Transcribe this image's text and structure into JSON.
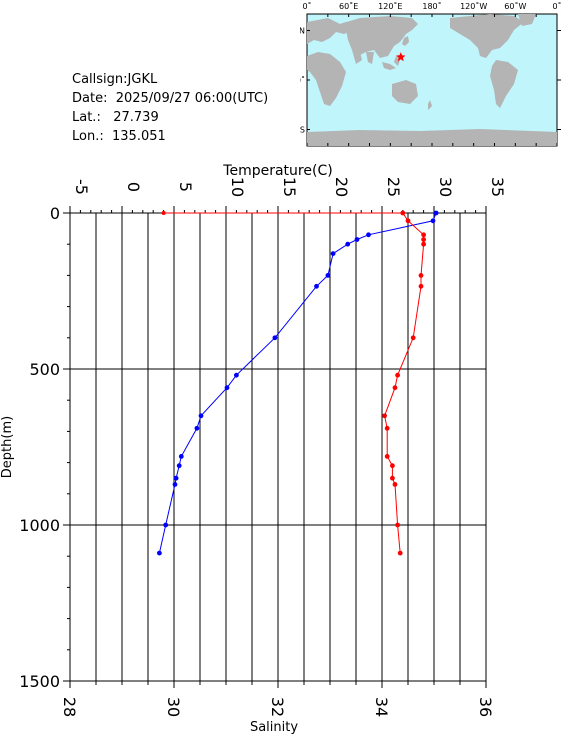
{
  "station": {
    "callsign_label": "Callsign:",
    "callsign": "JGKL",
    "date_label": "Date:",
    "date": "2025/09/27 06:00(UTC)",
    "lat_label": "Lat.:",
    "lat": "27.739",
    "lon_label": "Lon.:",
    "lon": "135.051"
  },
  "map": {
    "lon_ticks": [
      "0˚",
      "60˚E",
      "120˚E",
      "180˚",
      "120˚W",
      "60˚W",
      "0˚"
    ],
    "lat_ticks": [
      "60˚N",
      "0˚",
      "60˚S"
    ],
    "ocean_color": "#bff5fb",
    "land_color": "#b4b4b4",
    "marker_color": "#ff0000",
    "station_lon": 135.051,
    "station_lat": 27.739
  },
  "chart_data": {
    "type": "line",
    "top_axis": {
      "label": "Temperature(C)",
      "range": [
        -5,
        35
      ],
      "ticks": [
        -5,
        0,
        5,
        10,
        15,
        20,
        25,
        30,
        35
      ]
    },
    "bottom_axis": {
      "label": "Salinity",
      "range": [
        28,
        36
      ],
      "ticks": [
        28,
        30,
        32,
        34,
        36
      ]
    },
    "y_axis": {
      "label": "Depth(m)",
      "range": [
        0,
        1500
      ],
      "ticks": [
        0,
        500,
        1000,
        1500
      ],
      "inverted": true
    },
    "grid": true,
    "series": [
      {
        "axis": "top",
        "color": "#0000ff",
        "points": [
          {
            "x": 30.2,
            "y": 0
          },
          {
            "x": 29.9,
            "y": 25
          },
          {
            "x": 23.7,
            "y": 70
          },
          {
            "x": 22.6,
            "y": 85
          },
          {
            "x": 21.7,
            "y": 100
          },
          {
            "x": 20.3,
            "y": 130
          },
          {
            "x": 19.8,
            "y": 200
          },
          {
            "x": 18.7,
            "y": 235
          },
          {
            "x": 14.7,
            "y": 400
          },
          {
            "x": 11.0,
            "y": 520
          },
          {
            "x": 10.1,
            "y": 560
          },
          {
            "x": 7.6,
            "y": 650
          },
          {
            "x": 7.2,
            "y": 690
          },
          {
            "x": 5.7,
            "y": 780
          },
          {
            "x": 5.5,
            "y": 810
          },
          {
            "x": 5.2,
            "y": 850
          },
          {
            "x": 5.1,
            "y": 870
          },
          {
            "x": 4.2,
            "y": 1000
          },
          {
            "x": 3.6,
            "y": 1090
          }
        ]
      },
      {
        "axis": "bottom",
        "color": "#ff0000",
        "points": [
          {
            "x": 34.4,
            "y": 0
          },
          {
            "x": 34.5,
            "y": 25
          },
          {
            "x": 34.8,
            "y": 70
          },
          {
            "x": 34.8,
            "y": 85
          },
          {
            "x": 34.8,
            "y": 100
          },
          {
            "x": 34.75,
            "y": 200
          },
          {
            "x": 34.75,
            "y": 235
          },
          {
            "x": 34.6,
            "y": 400
          },
          {
            "x": 34.3,
            "y": 520
          },
          {
            "x": 34.25,
            "y": 560
          },
          {
            "x": 34.05,
            "y": 650
          },
          {
            "x": 34.1,
            "y": 690
          },
          {
            "x": 34.1,
            "y": 780
          },
          {
            "x": 34.2,
            "y": 810
          },
          {
            "x": 34.2,
            "y": 850
          },
          {
            "x": 34.25,
            "y": 870
          },
          {
            "x": 34.3,
            "y": 1000
          },
          {
            "x": 34.35,
            "y": 1090
          }
        ],
        "surface_extension": [
          {
            "x": 29.8,
            "y": 0
          },
          {
            "x": 34.4,
            "y": 0
          }
        ]
      }
    ]
  }
}
